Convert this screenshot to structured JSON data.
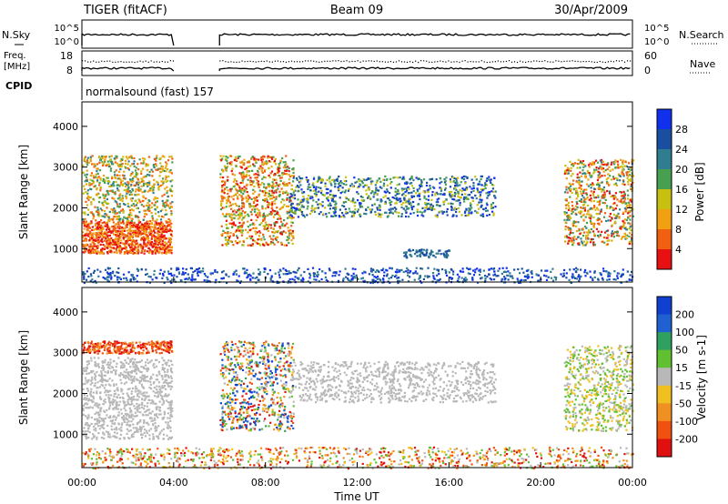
{
  "header": {
    "radar": "TIGER (fitACF)",
    "beam": "Beam 09",
    "date": "30/Apr/2009"
  },
  "side_labels": {
    "nsky": "N.Sky",
    "nsearch": "N.Search",
    "freq_line1": "Freq.",
    "freq_line2": "[MHz]",
    "nave": "Nave",
    "cpid": "CPID",
    "cpid_value": "normalsound (fast)  157"
  },
  "colors": {
    "dot": "#000000",
    "frame": "#000000"
  },
  "chart_data": [
    {
      "type": "line",
      "panel": "noise",
      "left_ticks": [
        "10^5",
        "10^0"
      ],
      "right_ticks": [
        "10^5",
        "10^0"
      ],
      "data_gap": [
        "04:00",
        "06:00"
      ]
    },
    {
      "type": "line",
      "panel": "frequency / nave",
      "left_ticks": [
        "18",
        "8"
      ],
      "right_ticks": [
        "60",
        "0"
      ],
      "data_gap": [
        "04:00",
        "06:00"
      ]
    },
    {
      "type": "heatmap",
      "panel": "power",
      "ylabel": "Slant Range [km]",
      "yticks": [
        1000,
        2000,
        3000,
        4000
      ],
      "ylim": [
        180,
        4600
      ],
      "colorbar": {
        "label": "Power [dB]",
        "ticks": [
          4,
          8,
          12,
          16,
          20,
          24,
          28
        ],
        "colors": [
          "#1030ee",
          "#1a4ea0",
          "#2f7d8e",
          "#46a050",
          "#c8c010",
          "#f0a010",
          "#f06010",
          "#e81010"
        ]
      }
    },
    {
      "type": "heatmap",
      "panel": "velocity",
      "ylabel": "Slant Range [km]",
      "yticks": [
        1000,
        2000,
        3000,
        4000
      ],
      "ylim": [
        180,
        4600
      ],
      "xlabel": "Time UT",
      "xticks": [
        "00:00",
        "04:00",
        "08:00",
        "12:00",
        "16:00",
        "20:00",
        "00:00"
      ],
      "colorbar": {
        "label": "Velocity [m s-1]",
        "ticks": [
          "200",
          "100",
          "50",
          "15",
          "-15",
          "-50",
          "-100",
          "-200"
        ],
        "colors": [
          "#1040d0",
          "#2060d0",
          "#30a060",
          "#60c030",
          "#b8b8b8",
          "#f0c020",
          "#f09020",
          "#f05010",
          "#e01010"
        ]
      }
    }
  ]
}
